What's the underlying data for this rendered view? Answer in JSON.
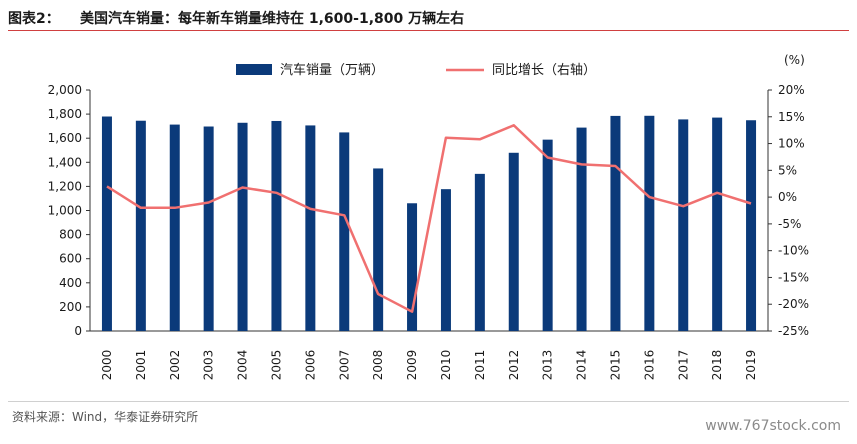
{
  "header": {
    "label": "图表2：",
    "title": "美国汽车销量：每年新车销量维持在 1,600-1,800 万辆左右"
  },
  "footer": {
    "source": "资料来源：Wind，华泰证券研究所",
    "watermark": "www.767stock.com"
  },
  "colors": {
    "bar": "#0b3a7a",
    "line": "#f07070",
    "accent_rule": "#d04040"
  },
  "chart_data": {
    "type": "bar",
    "categories": [
      "2000",
      "2001",
      "2002",
      "2003",
      "2004",
      "2005",
      "2006",
      "2007",
      "2008",
      "2009",
      "2010",
      "2011",
      "2012",
      "2013",
      "2014",
      "2015",
      "2016",
      "2017",
      "2018",
      "2019"
    ],
    "series": [
      {
        "name": "汽车销量（万辆）",
        "type": "bar",
        "axis": "left",
        "values": [
          1780,
          1745,
          1713,
          1697,
          1728,
          1743,
          1706,
          1648,
          1349,
          1060,
          1177,
          1304,
          1479,
          1588,
          1688,
          1785,
          1786,
          1756,
          1771,
          1749
        ]
      },
      {
        "name": "同比增长（右轴）",
        "type": "line",
        "axis": "right",
        "values": [
          2.0,
          -2.0,
          -2.0,
          -1.0,
          1.8,
          0.8,
          -2.2,
          -3.4,
          -18.1,
          -21.4,
          11.1,
          10.8,
          13.4,
          7.4,
          6.1,
          5.8,
          0.0,
          -1.7,
          0.8,
          -1.2
        ]
      }
    ],
    "yleft": {
      "ylim": [
        0,
        2000
      ],
      "ticks": [
        "0",
        "200",
        "400",
        "600",
        "800",
        "1,000",
        "1,200",
        "1,400",
        "1,600",
        "1,800",
        "2,000"
      ]
    },
    "yright": {
      "unit_label": "(%)",
      "ylim": [
        -25,
        20
      ],
      "ticks": [
        "-25%",
        "-20%",
        "-15%",
        "-10%",
        "-5%",
        "0%",
        "5%",
        "10%",
        "15%",
        "20%"
      ]
    },
    "legend_position": "top"
  }
}
